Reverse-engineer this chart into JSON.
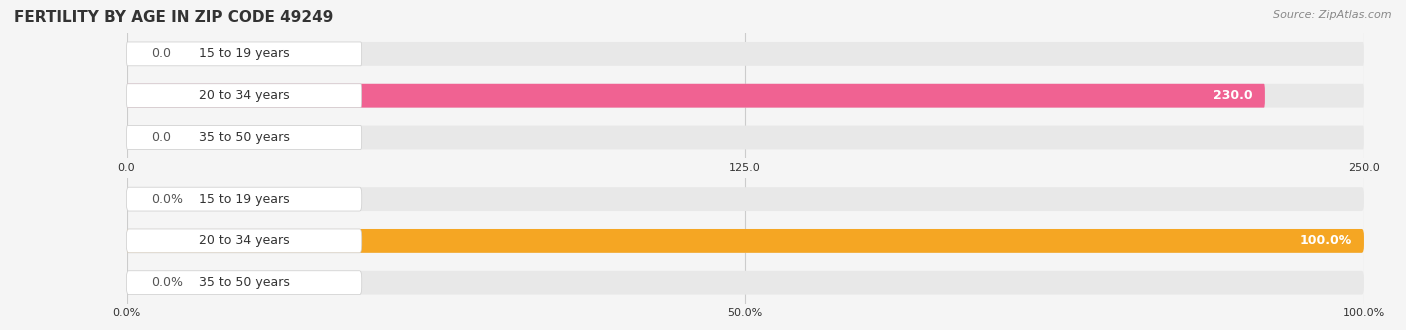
{
  "title": "FERTILITY BY AGE IN ZIP CODE 49249",
  "source": "Source: ZipAtlas.com",
  "chart1": {
    "categories": [
      "15 to 19 years",
      "20 to 34 years",
      "35 to 50 years"
    ],
    "values": [
      0.0,
      230.0,
      0.0
    ],
    "xlim": [
      0,
      250.0
    ],
    "xticks": [
      0.0,
      125.0,
      250.0
    ],
    "xtick_labels": [
      "0.0",
      "125.0",
      "250.0"
    ],
    "bar_color": "#f06292",
    "value_threshold": 200
  },
  "chart2": {
    "categories": [
      "15 to 19 years",
      "20 to 34 years",
      "35 to 50 years"
    ],
    "values": [
      0.0,
      100.0,
      0.0
    ],
    "xlim": [
      0,
      100.0
    ],
    "xticks": [
      0.0,
      50.0,
      100.0
    ],
    "xtick_labels": [
      "0.0%",
      "50.0%",
      "100.0%"
    ],
    "bar_color": "#f5a623",
    "value_threshold": 80
  },
  "bg_color": "#f5f5f5",
  "bar_bg_color": "#e8e8e8",
  "label_bg_color": "#ffffff",
  "grid_color": "#cccccc",
  "text_color": "#333333",
  "label_color_inside": "#ffffff",
  "label_color_outside": "#555555",
  "ylabel_fontsize": 9,
  "value_fontsize": 9,
  "title_fontsize": 11,
  "source_fontsize": 8
}
